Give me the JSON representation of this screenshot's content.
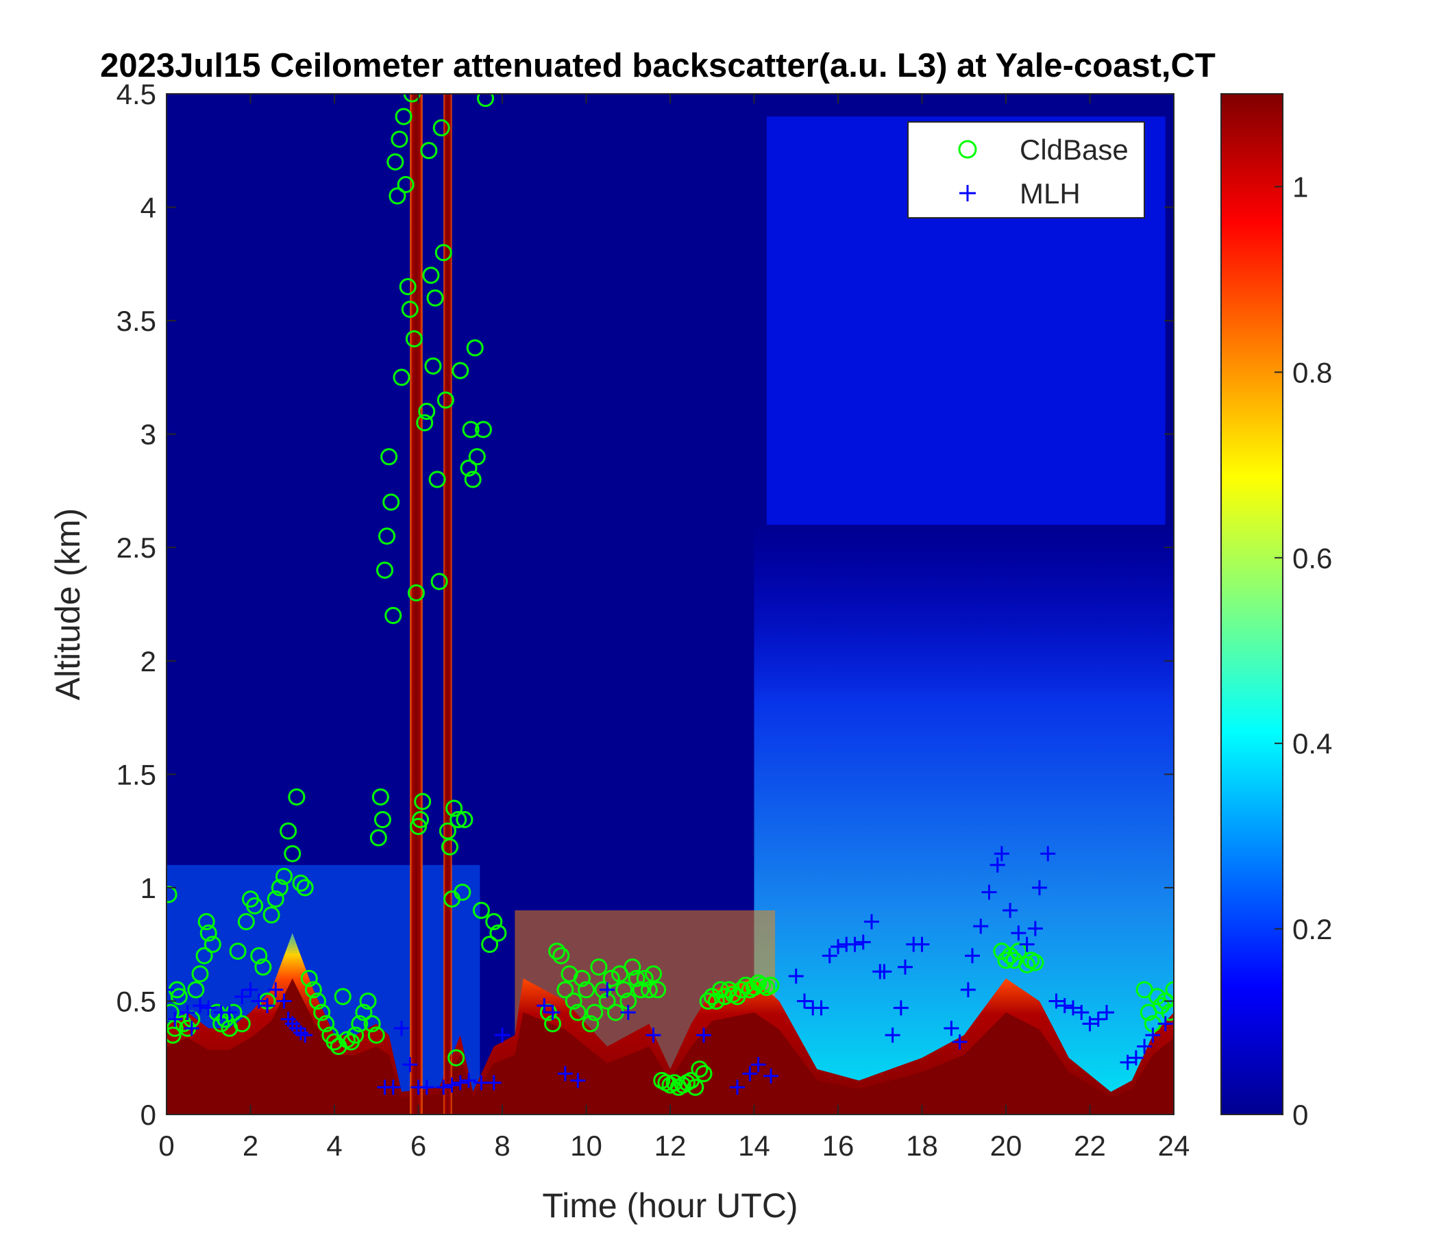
{
  "chart_data": {
    "type": "heatmap",
    "title": "2023Jul15 Ceilometer attenuated backscatter(a.u. L3) at Yale-coast,CT",
    "xlabel": "Time (hour UTC)",
    "ylabel": "Altitude (km)",
    "xlim": [
      0,
      24
    ],
    "ylim": [
      0,
      4.5
    ],
    "xticks": [
      "0",
      "2",
      "4",
      "6",
      "8",
      "10",
      "12",
      "14",
      "16",
      "18",
      "20",
      "22",
      "24"
    ],
    "yticks": [
      "0",
      "0.5",
      "1",
      "1.5",
      "2",
      "2.5",
      "3",
      "3.5",
      "4",
      "4.5"
    ],
    "colorbar": {
      "colormap": "jet",
      "range": [
        0,
        1.1
      ],
      "ticks": [
        "0",
        "0.2",
        "0.4",
        "0.6",
        "0.8",
        "1"
      ]
    },
    "legend": {
      "placement": "top-right",
      "entries": [
        {
          "label": "CldBase",
          "marker": "circle",
          "color": "#00ff00"
        },
        {
          "label": "MLH",
          "marker": "plus",
          "color": "#0000ff"
        }
      ]
    },
    "background_layer_tops_km": [
      {
        "t": 0,
        "h": 0.4
      },
      {
        "t": 0.5,
        "h": 0.45
      },
      {
        "t": 1.0,
        "h": 0.38
      },
      {
        "t": 1.5,
        "h": 0.38
      },
      {
        "t": 2.0,
        "h": 0.45
      },
      {
        "t": 2.5,
        "h": 0.55
      },
      {
        "t": 3.0,
        "h": 0.8
      },
      {
        "t": 3.5,
        "h": 0.55
      },
      {
        "t": 4.0,
        "h": 0.35
      },
      {
        "t": 4.5,
        "h": 0.35
      },
      {
        "t": 5.0,
        "h": 0.4
      },
      {
        "t": 5.3,
        "h": 0.35
      },
      {
        "t": 5.6,
        "h": 0.1
      },
      {
        "t": 6.5,
        "h": 0.12
      },
      {
        "t": 7.0,
        "h": 0.35
      },
      {
        "t": 7.3,
        "h": 0.1
      },
      {
        "t": 7.8,
        "h": 0.3
      },
      {
        "t": 8.3,
        "h": 0.35
      },
      {
        "t": 8.5,
        "h": 0.6
      },
      {
        "t": 9.5,
        "h": 0.5
      },
      {
        "t": 10.5,
        "h": 0.3
      },
      {
        "t": 11.5,
        "h": 0.4
      },
      {
        "t": 12.0,
        "h": 0.2
      },
      {
        "t": 12.5,
        "h": 0.4
      },
      {
        "t": 13.0,
        "h": 0.55
      },
      {
        "t": 14.0,
        "h": 0.6
      },
      {
        "t": 14.6,
        "h": 0.5
      },
      {
        "t": 15.5,
        "h": 0.2
      },
      {
        "t": 16.5,
        "h": 0.15
      },
      {
        "t": 18.0,
        "h": 0.25
      },
      {
        "t": 19.0,
        "h": 0.35
      },
      {
        "t": 20.0,
        "h": 0.6
      },
      {
        "t": 20.8,
        "h": 0.5
      },
      {
        "t": 21.5,
        "h": 0.25
      },
      {
        "t": 22.5,
        "h": 0.1
      },
      {
        "t": 23.0,
        "h": 0.15
      },
      {
        "t": 23.5,
        "h": 0.35
      },
      {
        "t": 24,
        "h": 0.45
      }
    ],
    "cloud_columns_hours": [
      [
        5.8,
        6.1
      ],
      [
        6.6,
        6.8
      ]
    ],
    "series": [
      {
        "name": "CldBase",
        "points": [
          [
            0.05,
            0.97
          ],
          [
            0.1,
            0.45
          ],
          [
            0.15,
            0.35
          ],
          [
            0.2,
            0.38
          ],
          [
            0.25,
            0.55
          ],
          [
            0.3,
            0.52
          ],
          [
            0.4,
            0.4
          ],
          [
            0.5,
            0.38
          ],
          [
            0.6,
            0.42
          ],
          [
            0.7,
            0.55
          ],
          [
            0.8,
            0.62
          ],
          [
            0.9,
            0.7
          ],
          [
            0.95,
            0.85
          ],
          [
            1.0,
            0.8
          ],
          [
            1.1,
            0.75
          ],
          [
            1.2,
            0.45
          ],
          [
            1.3,
            0.4
          ],
          [
            1.4,
            0.42
          ],
          [
            1.5,
            0.38
          ],
          [
            1.6,
            0.45
          ],
          [
            1.7,
            0.72
          ],
          [
            1.8,
            0.4
          ],
          [
            1.9,
            0.85
          ],
          [
            2.0,
            0.95
          ],
          [
            2.1,
            0.92
          ],
          [
            2.2,
            0.7
          ],
          [
            2.3,
            0.65
          ],
          [
            2.4,
            0.5
          ],
          [
            2.5,
            0.88
          ],
          [
            2.6,
            0.95
          ],
          [
            2.7,
            1.0
          ],
          [
            2.8,
            1.05
          ],
          [
            2.9,
            1.25
          ],
          [
            3.0,
            1.15
          ],
          [
            3.1,
            1.4
          ],
          [
            3.2,
            1.02
          ],
          [
            3.3,
            1.0
          ],
          [
            3.4,
            0.6
          ],
          [
            3.5,
            0.55
          ],
          [
            3.6,
            0.5
          ],
          [
            3.7,
            0.45
          ],
          [
            3.8,
            0.4
          ],
          [
            3.9,
            0.35
          ],
          [
            4.0,
            0.32
          ],
          [
            4.1,
            0.3
          ],
          [
            4.2,
            0.52
          ],
          [
            4.3,
            0.33
          ],
          [
            4.4,
            0.32
          ],
          [
            4.5,
            0.35
          ],
          [
            4.6,
            0.4
          ],
          [
            4.7,
            0.45
          ],
          [
            4.8,
            0.5
          ],
          [
            4.9,
            0.4
          ],
          [
            5.0,
            0.35
          ],
          [
            5.05,
            1.22
          ],
          [
            5.1,
            1.4
          ],
          [
            5.15,
            1.3
          ],
          [
            5.2,
            2.4
          ],
          [
            5.25,
            2.55
          ],
          [
            5.3,
            2.9
          ],
          [
            5.35,
            2.7
          ],
          [
            5.4,
            2.2
          ],
          [
            5.45,
            4.2
          ],
          [
            5.5,
            4.05
          ],
          [
            5.55,
            4.3
          ],
          [
            5.6,
            3.25
          ],
          [
            5.65,
            4.4
          ],
          [
            5.7,
            4.1
          ],
          [
            5.75,
            3.65
          ],
          [
            5.8,
            3.55
          ],
          [
            5.85,
            4.5
          ],
          [
            5.9,
            3.42
          ],
          [
            5.95,
            2.3
          ],
          [
            6.0,
            1.27
          ],
          [
            6.05,
            1.3
          ],
          [
            6.1,
            1.38
          ],
          [
            6.15,
            3.05
          ],
          [
            6.2,
            3.1
          ],
          [
            6.25,
            4.25
          ],
          [
            6.3,
            3.7
          ],
          [
            6.35,
            3.3
          ],
          [
            6.4,
            3.6
          ],
          [
            6.45,
            2.8
          ],
          [
            6.5,
            2.35
          ],
          [
            6.55,
            4.35
          ],
          [
            6.6,
            3.8
          ],
          [
            6.65,
            3.15
          ],
          [
            6.7,
            1.25
          ],
          [
            6.75,
            1.18
          ],
          [
            6.8,
            0.95
          ],
          [
            6.85,
            1.35
          ],
          [
            6.9,
            0.25
          ],
          [
            6.95,
            1.3
          ],
          [
            7.0,
            3.28
          ],
          [
            7.05,
            0.98
          ],
          [
            7.1,
            1.3
          ],
          [
            7.2,
            2.85
          ],
          [
            7.25,
            3.02
          ],
          [
            7.3,
            2.8
          ],
          [
            7.35,
            3.38
          ],
          [
            7.4,
            2.9
          ],
          [
            7.5,
            0.9
          ],
          [
            7.55,
            3.02
          ],
          [
            7.6,
            4.48
          ],
          [
            7.7,
            0.75
          ],
          [
            7.8,
            0.85
          ],
          [
            7.9,
            0.8
          ],
          [
            9.1,
            0.45
          ],
          [
            9.2,
            0.4
          ],
          [
            9.3,
            0.72
          ],
          [
            9.4,
            0.7
          ],
          [
            9.5,
            0.55
          ],
          [
            9.6,
            0.62
          ],
          [
            9.7,
            0.5
          ],
          [
            9.8,
            0.45
          ],
          [
            9.9,
            0.6
          ],
          [
            10.0,
            0.55
          ],
          [
            10.1,
            0.4
          ],
          [
            10.2,
            0.45
          ],
          [
            10.3,
            0.65
          ],
          [
            10.4,
            0.55
          ],
          [
            10.5,
            0.5
          ],
          [
            10.6,
            0.6
          ],
          [
            10.7,
            0.45
          ],
          [
            10.8,
            0.62
          ],
          [
            10.9,
            0.55
          ],
          [
            11.0,
            0.5
          ],
          [
            11.1,
            0.65
          ],
          [
            11.2,
            0.6
          ],
          [
            11.3,
            0.55
          ],
          [
            11.4,
            0.6
          ],
          [
            11.5,
            0.55
          ],
          [
            11.6,
            0.62
          ],
          [
            11.7,
            0.55
          ],
          [
            11.8,
            0.15
          ],
          [
            11.9,
            0.14
          ],
          [
            12.0,
            0.13
          ],
          [
            12.1,
            0.14
          ],
          [
            12.2,
            0.12
          ],
          [
            12.3,
            0.13
          ],
          [
            12.4,
            0.14
          ],
          [
            12.5,
            0.15
          ],
          [
            12.6,
            0.12
          ],
          [
            12.7,
            0.2
          ],
          [
            12.8,
            0.18
          ],
          [
            12.9,
            0.5
          ],
          [
            13.0,
            0.52
          ],
          [
            13.1,
            0.5
          ],
          [
            13.2,
            0.55
          ],
          [
            13.3,
            0.52
          ],
          [
            13.4,
            0.55
          ],
          [
            13.5,
            0.53
          ],
          [
            13.6,
            0.52
          ],
          [
            13.7,
            0.55
          ],
          [
            13.8,
            0.57
          ],
          [
            13.9,
            0.55
          ],
          [
            14.0,
            0.56
          ],
          [
            14.1,
            0.58
          ],
          [
            14.2,
            0.57
          ],
          [
            14.3,
            0.56
          ],
          [
            14.4,
            0.57
          ],
          [
            19.9,
            0.72
          ],
          [
            20.0,
            0.68
          ],
          [
            20.1,
            0.7
          ],
          [
            20.2,
            0.68
          ],
          [
            20.3,
            0.72
          ],
          [
            20.5,
            0.66
          ],
          [
            20.6,
            0.68
          ],
          [
            20.7,
            0.67
          ],
          [
            23.3,
            0.55
          ],
          [
            23.4,
            0.45
          ],
          [
            23.5,
            0.4
          ],
          [
            23.6,
            0.52
          ],
          [
            23.7,
            0.48
          ],
          [
            23.8,
            0.5
          ],
          [
            23.9,
            0.45
          ],
          [
            24.0,
            0.55
          ]
        ]
      },
      {
        "name": "MLH",
        "points": [
          [
            0.0,
            0.55
          ],
          [
            0.2,
            0.42
          ],
          [
            0.5,
            0.45
          ],
          [
            0.6,
            0.38
          ],
          [
            0.8,
            0.48
          ],
          [
            1.0,
            0.47
          ],
          [
            1.3,
            0.45
          ],
          [
            1.5,
            0.45
          ],
          [
            1.8,
            0.52
          ],
          [
            2.0,
            0.55
          ],
          [
            2.2,
            0.5
          ],
          [
            2.4,
            0.48
          ],
          [
            2.6,
            0.55
          ],
          [
            2.8,
            0.5
          ],
          [
            2.9,
            0.42
          ],
          [
            3.0,
            0.4
          ],
          [
            3.1,
            0.38
          ],
          [
            3.2,
            0.36
          ],
          [
            3.3,
            0.35
          ],
          [
            5.2,
            0.12
          ],
          [
            5.4,
            0.12
          ],
          [
            5.6,
            0.38
          ],
          [
            5.8,
            0.22
          ],
          [
            6.0,
            0.12
          ],
          [
            6.2,
            0.12
          ],
          [
            6.6,
            0.12
          ],
          [
            6.8,
            0.13
          ],
          [
            7.0,
            0.14
          ],
          [
            7.2,
            0.15
          ],
          [
            7.5,
            0.14
          ],
          [
            7.8,
            0.14
          ],
          [
            8.0,
            0.35
          ],
          [
            9.0,
            0.48
          ],
          [
            9.2,
            0.45
          ],
          [
            9.5,
            0.18
          ],
          [
            9.8,
            0.15
          ],
          [
            10.5,
            0.55
          ],
          [
            11.0,
            0.45
          ],
          [
            11.6,
            0.35
          ],
          [
            12.8,
            0.35
          ],
          [
            13.6,
            0.12
          ],
          [
            13.9,
            0.18
          ],
          [
            14.1,
            0.22
          ],
          [
            14.4,
            0.17
          ],
          [
            15.0,
            0.61
          ],
          [
            15.2,
            0.5
          ],
          [
            15.4,
            0.47
          ],
          [
            15.6,
            0.47
          ],
          [
            15.8,
            0.7
          ],
          [
            16.0,
            0.74
          ],
          [
            16.2,
            0.75
          ],
          [
            16.4,
            0.75
          ],
          [
            16.6,
            0.76
          ],
          [
            16.8,
            0.85
          ],
          [
            17.0,
            0.63
          ],
          [
            17.1,
            0.63
          ],
          [
            17.3,
            0.35
          ],
          [
            17.5,
            0.47
          ],
          [
            17.6,
            0.65
          ],
          [
            17.8,
            0.75
          ],
          [
            18.0,
            0.75
          ],
          [
            18.7,
            0.38
          ],
          [
            18.9,
            0.32
          ],
          [
            19.1,
            0.55
          ],
          [
            19.2,
            0.7
          ],
          [
            19.4,
            0.83
          ],
          [
            19.6,
            0.98
          ],
          [
            19.8,
            1.1
          ],
          [
            19.9,
            1.15
          ],
          [
            20.1,
            0.9
          ],
          [
            20.3,
            0.8
          ],
          [
            20.5,
            0.75
          ],
          [
            20.7,
            0.82
          ],
          [
            20.8,
            1.0
          ],
          [
            21.0,
            1.15
          ],
          [
            21.2,
            0.5
          ],
          [
            21.4,
            0.48
          ],
          [
            21.6,
            0.47
          ],
          [
            21.8,
            0.45
          ],
          [
            22.0,
            0.4
          ],
          [
            22.2,
            0.42
          ],
          [
            22.4,
            0.45
          ],
          [
            22.9,
            0.23
          ],
          [
            23.1,
            0.25
          ],
          [
            23.3,
            0.3
          ],
          [
            23.5,
            0.35
          ],
          [
            23.8,
            0.4
          ]
        ]
      }
    ]
  }
}
